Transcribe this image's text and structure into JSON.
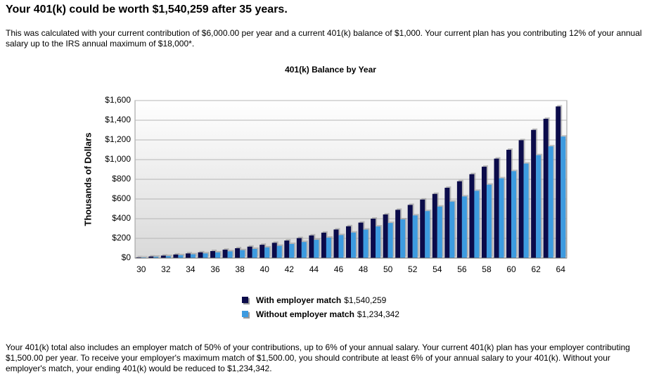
{
  "header": {
    "title": "Your 401(k) could be worth $1,540,259 after 35 years."
  },
  "intro": "This was calculated with your current contribution of $6,000.00 per year and a current 401(k) balance of $1,000. Your current plan has you contributing 12% of your annual salary up to the IRS annual maximum of $18,000*.",
  "footer": "Your 401(k) total also includes an employer match of 50% of your contributions, up to 6% of your annual salary. Your current 401(k) plan has your employer contributing $1,500.00 per year. To receive your employer's maximum match of $1,500.00, you should contribute at least 6% of your annual salary to your 401(k). Without your employer's match, your ending 401(k) would be reduced to $1,234,342.",
  "chart_data": {
    "type": "bar",
    "title": "401(k) Balance by Year",
    "y_label": "Thousands of Dollars",
    "categories": [
      30,
      null,
      32,
      null,
      34,
      null,
      36,
      null,
      38,
      null,
      40,
      null,
      42,
      null,
      44,
      null,
      46,
      null,
      48,
      null,
      50,
      null,
      52,
      null,
      54,
      null,
      56,
      null,
      58,
      null,
      60,
      null,
      62,
      null,
      64
    ],
    "series": [
      {
        "name": "With employer match",
        "legend_value": "$1,540,259",
        "color": "#0b0b4a",
        "values": [
          8,
          16,
          25,
          36,
          47,
          58,
          71,
          85,
          100,
          116,
          135,
          155,
          178,
          203,
          230,
          258,
          290,
          323,
          360,
          400,
          443,
          490,
          540,
          594,
          652,
          714,
          780,
          852,
          928,
          1010,
          1100,
          1197,
          1302,
          1415,
          1540.259
        ]
      },
      {
        "name": "Without employer match",
        "legend_value": "$1,234,342",
        "color": "#3d9be0",
        "values": [
          7,
          13,
          20,
          29,
          38,
          47,
          57,
          68,
          80,
          93,
          108,
          124,
          143,
          163,
          185,
          207,
          233,
          259,
          289,
          321,
          356,
          393,
          433,
          477,
          523,
          573,
          626,
          683,
          745,
          810,
          883,
          960,
          1045,
          1135,
          1234.342
        ]
      }
    ],
    "ylim": [
      0,
      1600
    ],
    "yticks": [
      {
        "value": 0,
        "label": "$0"
      },
      {
        "value": 200,
        "label": "$200"
      },
      {
        "value": 400,
        "label": "$400"
      },
      {
        "value": 600,
        "label": "$600"
      },
      {
        "value": 800,
        "label": "$800"
      },
      {
        "value": 1000,
        "label": "$1,000"
      },
      {
        "value": 1200,
        "label": "$1,200"
      },
      {
        "value": 1400,
        "label": "$1,400"
      },
      {
        "value": 1600,
        "label": "$1,600"
      }
    ],
    "grid": true
  }
}
